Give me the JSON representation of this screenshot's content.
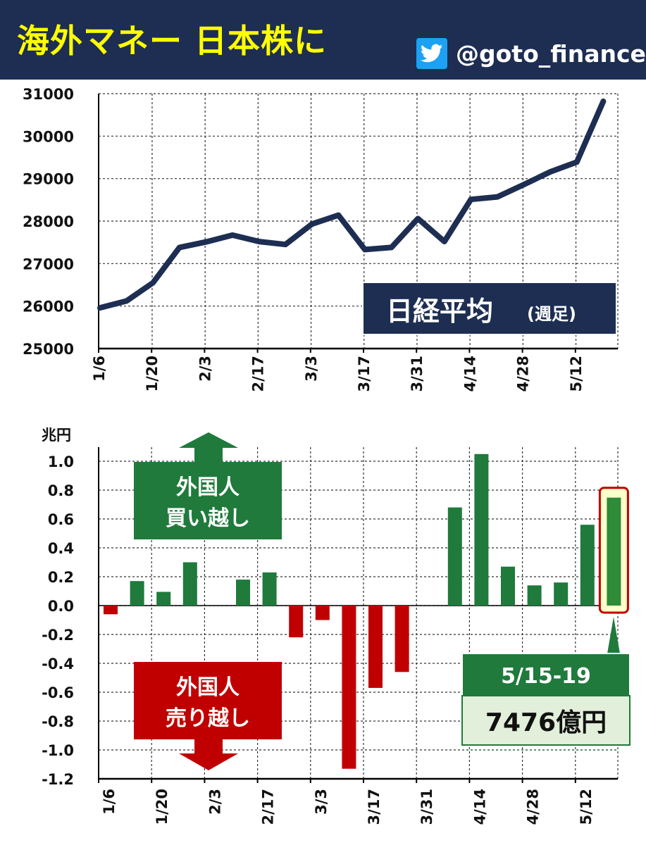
{
  "header": {
    "title": "海外マネー 日本株に",
    "handle": "@goto_finance",
    "icon": "twitter-bird-icon"
  },
  "colors": {
    "header_bg": "#1d2e52",
    "title": "#ffff00",
    "line": "#1d2e52",
    "buy": "#1f7a3c",
    "sell": "#c00000",
    "highlight_fill": "#ffffcc",
    "highlight_border": "#c00000",
    "callout_green": "#1f7a3c",
    "callout_light": "#e2efda"
  },
  "chart_data": [
    {
      "type": "line",
      "title": "",
      "label_box": {
        "main": "日経平均",
        "sub": "(週足)"
      },
      "ylim": [
        25000,
        31000
      ],
      "yticks": [
        25000,
        26000,
        27000,
        28000,
        29000,
        30000,
        31000
      ],
      "x_tick_labels": [
        "1/6",
        "1/20",
        "2/3",
        "2/17",
        "3/3",
        "3/17",
        "3/31",
        "4/14",
        "4/28",
        "5/12"
      ],
      "x": [
        "1/6",
        "1/13",
        "1/20",
        "1/27",
        "2/3",
        "2/10",
        "2/17",
        "2/24",
        "3/3",
        "3/10",
        "3/17",
        "3/24",
        "3/31",
        "4/7",
        "4/14",
        "4/21",
        "4/28",
        "5/5",
        "5/12",
        "5/19"
      ],
      "series": [
        {
          "values": [
            25960,
            26120,
            26550,
            27380,
            27510,
            27670,
            27520,
            27450,
            27930,
            28140,
            27330,
            27380,
            28060,
            27520,
            28510,
            28570,
            28860,
            29160,
            29390,
            30820
          ]
        }
      ]
    },
    {
      "type": "bar",
      "unit": "兆円",
      "ylim": [
        -1.2,
        1.0
      ],
      "yticks": [
        "1.0",
        "0.8",
        "0.6",
        "0.4",
        "0.2",
        "0.0",
        "-0.2",
        "-0.4",
        "-0.6",
        "-0.8",
        "-1.0",
        "-1.2"
      ],
      "x_tick_labels": [
        "1/6",
        "1/20",
        "2/3",
        "2/17",
        "3/3",
        "3/17",
        "3/31",
        "4/14",
        "4/28",
        "5/12"
      ],
      "categories": [
        "1/6",
        "1/13",
        "1/20",
        "1/27",
        "2/3",
        "2/10",
        "2/17",
        "2/24",
        "3/3",
        "3/10",
        "3/17",
        "3/24",
        "3/31",
        "4/7",
        "4/14",
        "4/21",
        "4/28",
        "5/5",
        "5/12",
        "5/19"
      ],
      "values": [
        -0.06,
        0.17,
        0.095,
        0.3,
        null,
        0.18,
        0.23,
        -0.22,
        -0.1,
        -1.13,
        -0.57,
        -0.46,
        null,
        0.68,
        1.05,
        0.27,
        0.14,
        0.16,
        0.56,
        0.7476
      ],
      "buy_label": [
        "外国人",
        "買い越し"
      ],
      "sell_label": [
        "外国人",
        "売り越し"
      ],
      "callout": {
        "period": "5/15-19",
        "amount": "7476億円"
      }
    }
  ]
}
